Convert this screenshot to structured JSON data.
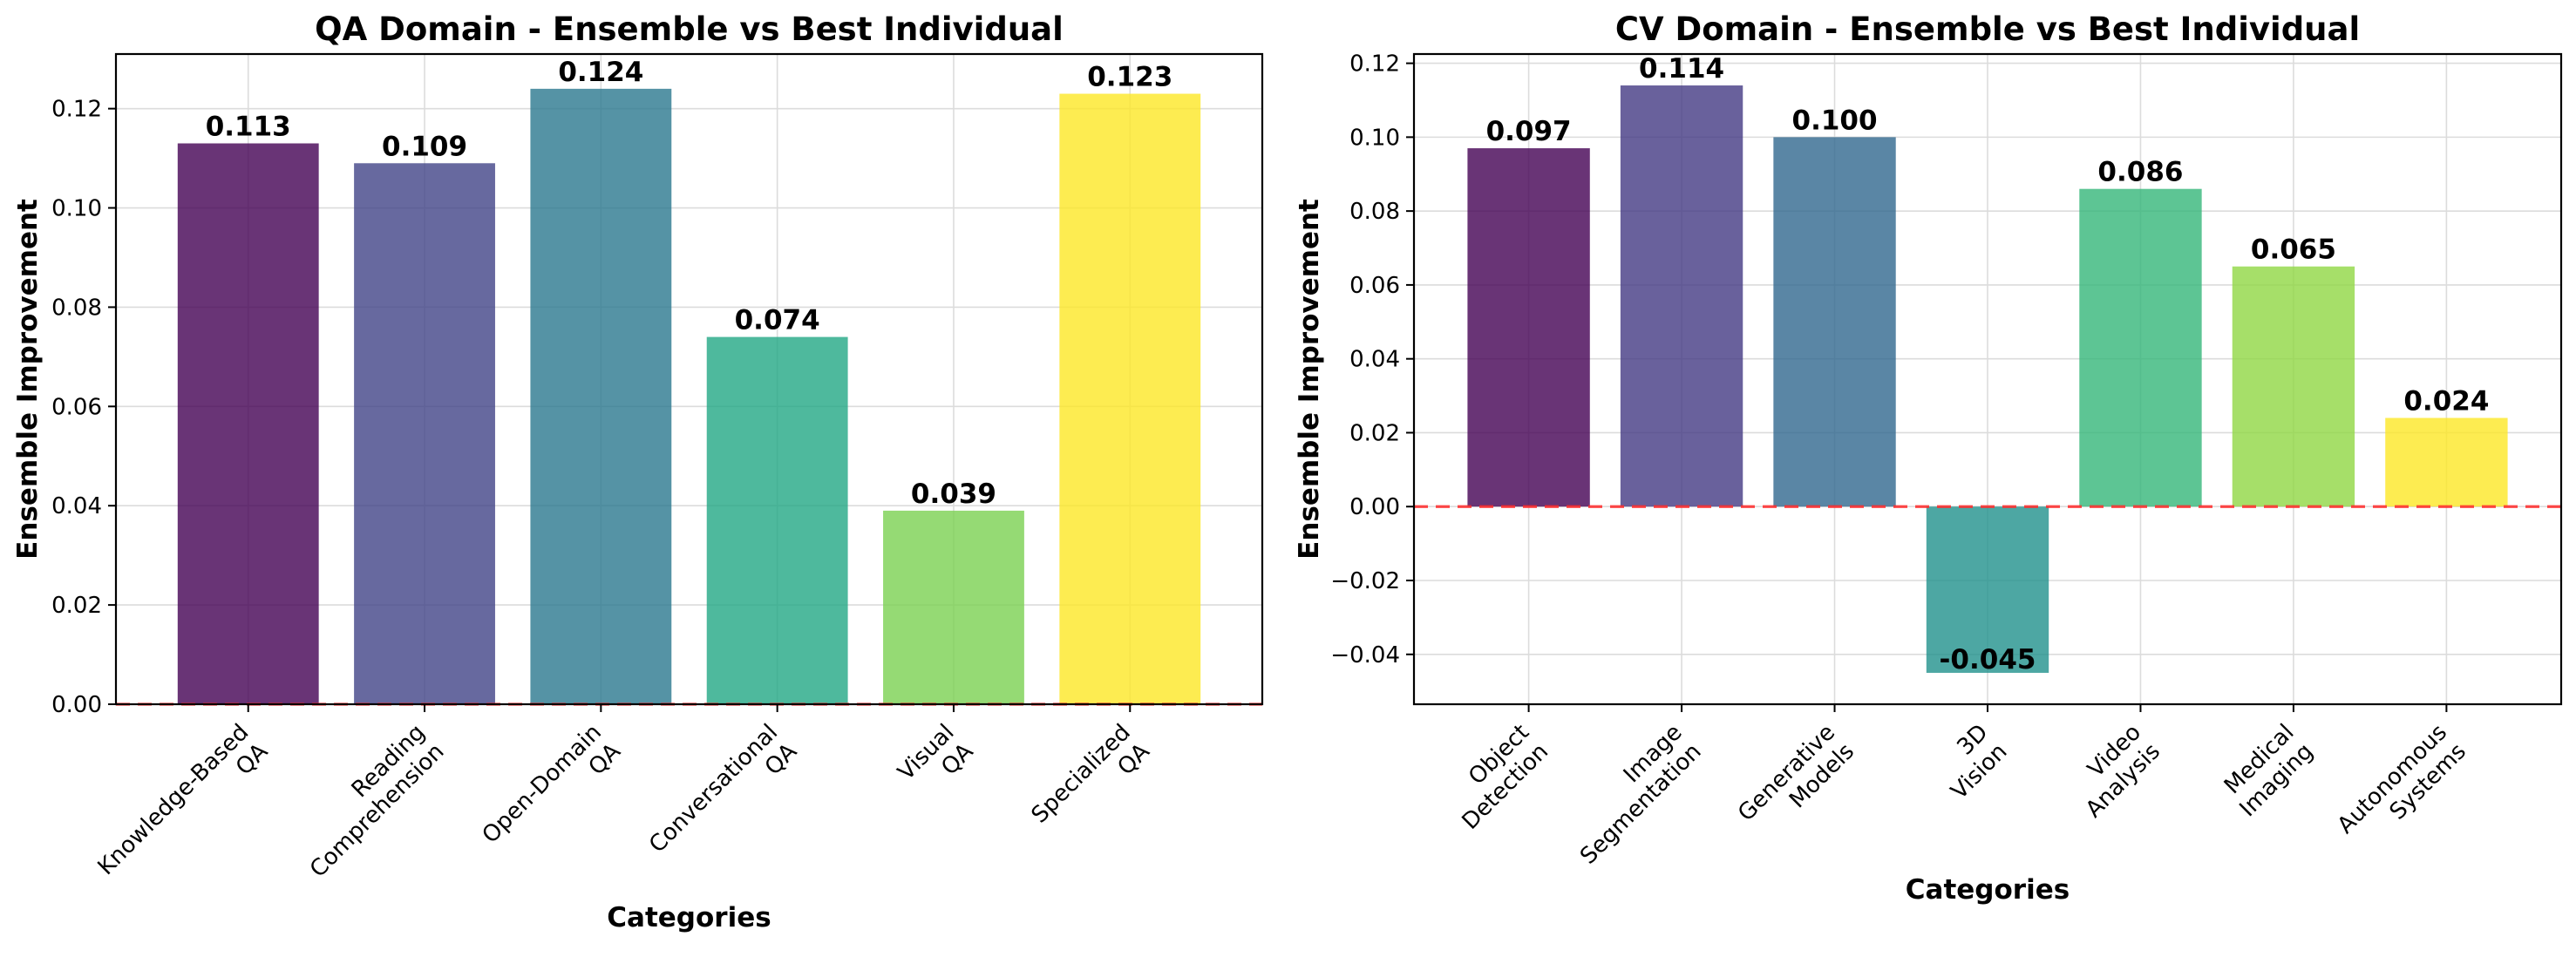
{
  "chart_data": [
    {
      "type": "bar",
      "title": "QA Domain - Ensemble vs Best Individual",
      "xlabel": "Categories",
      "ylabel": "Ensemble Improvement",
      "categories": [
        "Knowledge-Based\nQA",
        "Reading\nComprehension",
        "Open-Domain\nQA",
        "Conversational\nQA",
        "Visual\nQA",
        "Specialized\nQA"
      ],
      "values": [
        0.113,
        0.109,
        0.124,
        0.074,
        0.039,
        0.123
      ],
      "data_labels": [
        "0.113",
        "0.109",
        "0.124",
        "0.074",
        "0.039",
        "0.123"
      ],
      "colors": [
        "#440154",
        "#414487",
        "#2a788e",
        "#22a884",
        "#7ad151",
        "#fde725"
      ],
      "ylim": [
        0,
        0.131
      ],
      "yticks": [
        0.0,
        0.02,
        0.04,
        0.06,
        0.08,
        0.1,
        0.12
      ],
      "ytick_labels": [
        "0.00",
        "0.02",
        "0.04",
        "0.06",
        "0.08",
        "0.10",
        "0.12"
      ],
      "reference_line": 0,
      "grid": true
    },
    {
      "type": "bar",
      "title": "CV Domain - Ensemble vs Best Individual",
      "xlabel": "Categories",
      "ylabel": "Ensemble Improvement",
      "categories": [
        "Object\nDetection",
        "Image\nSegmentation",
        "Generative\nModels",
        "3D\nVision",
        "Video\nAnalysis",
        "Medical\nImaging",
        "Autonomous\nSystems"
      ],
      "values": [
        0.097,
        0.114,
        0.1,
        -0.045,
        0.086,
        0.065,
        0.024
      ],
      "data_labels": [
        "0.097",
        "0.114",
        "0.100",
        "-0.045",
        "0.086",
        "0.065",
        "0.024"
      ],
      "colors": [
        "#440154",
        "#443983",
        "#31688e",
        "#21918c",
        "#35b779",
        "#90d743",
        "#fde725"
      ],
      "ylim": [
        -0.0535,
        0.1225
      ],
      "yticks": [
        -0.04,
        -0.02,
        0.0,
        0.02,
        0.04,
        0.06,
        0.08,
        0.1,
        0.12
      ],
      "ytick_labels": [
        "−0.04",
        "−0.02",
        "0.00",
        "0.02",
        "0.04",
        "0.06",
        "0.08",
        "0.10",
        "0.12"
      ],
      "reference_line": 0,
      "grid": true
    }
  ]
}
